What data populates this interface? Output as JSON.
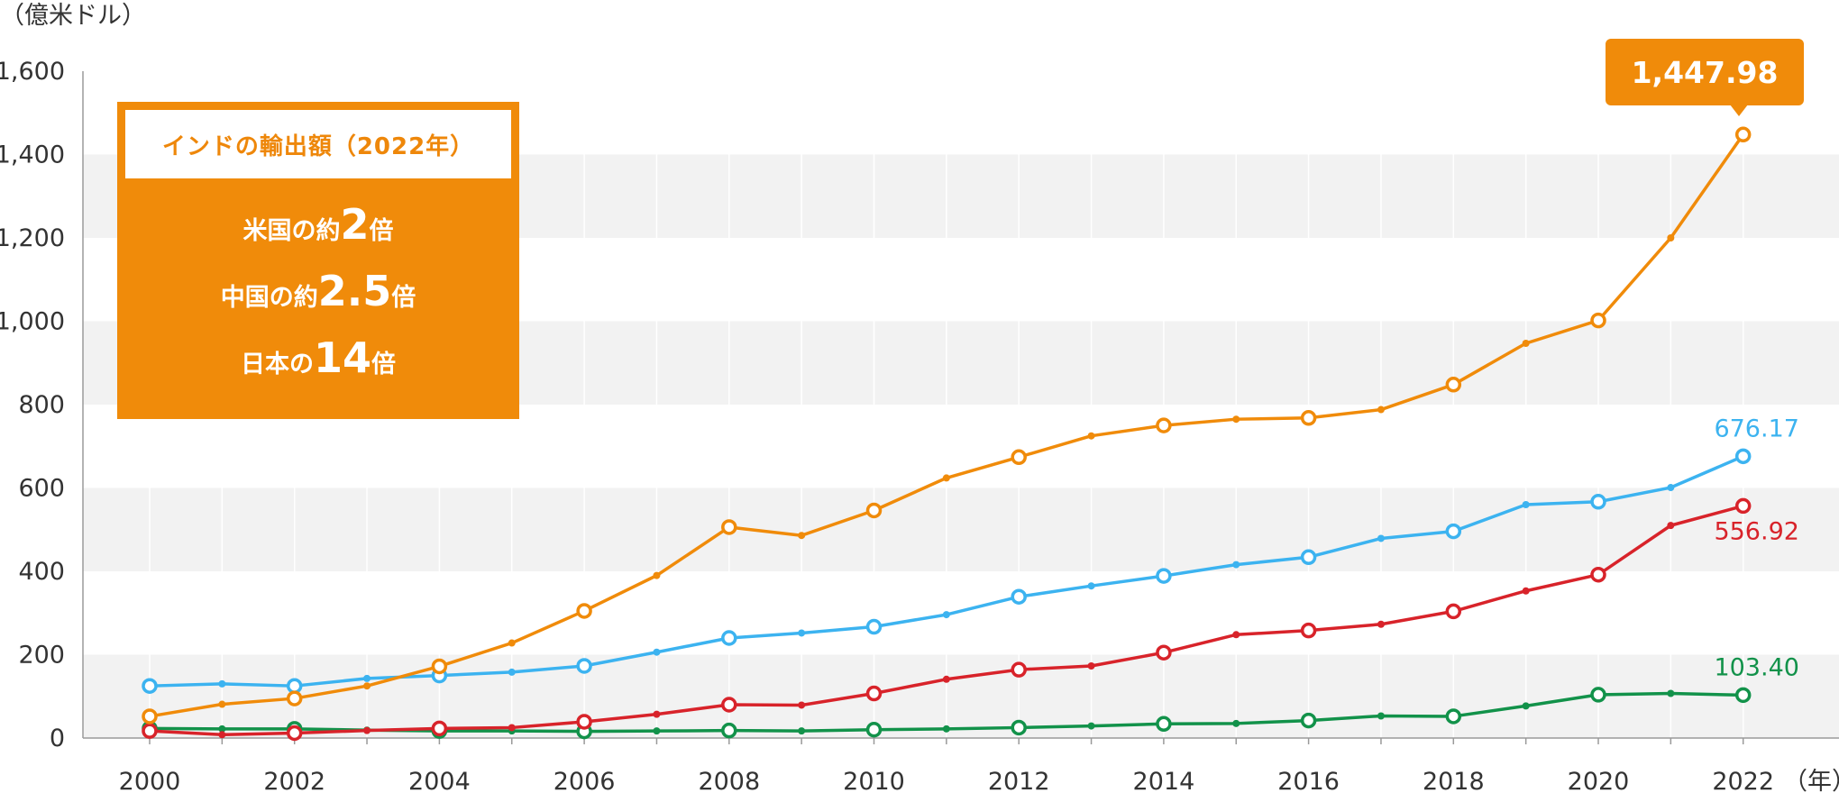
{
  "chart_data": {
    "type": "line",
    "yunit": "（億米ドル）",
    "xunit": "（年）",
    "ylim": [
      0,
      1600
    ],
    "yticks": [
      0,
      200,
      400,
      600,
      800,
      1000,
      1200,
      1400,
      1600
    ],
    "ytick_labels": [
      "0",
      "200",
      "400",
      "600",
      "800",
      "1,000",
      "1,200",
      "1,400",
      "1,600"
    ],
    "x": [
      2000,
      2001,
      2002,
      2003,
      2004,
      2005,
      2006,
      2007,
      2008,
      2009,
      2010,
      2011,
      2012,
      2013,
      2014,
      2015,
      2016,
      2017,
      2018,
      2019,
      2020,
      2021,
      2022
    ],
    "xtick_labels": [
      "2000",
      "2002",
      "2004",
      "2006",
      "2008",
      "2010",
      "2012",
      "2014",
      "2016",
      "2018",
      "2020",
      "2022"
    ],
    "grid": "alternating horizontal bands with vertical gridlines",
    "series": [
      {
        "color": "#F08B0A",
        "end_label": "1,447.98",
        "values": [
          52,
          81,
          95,
          125,
          172,
          228,
          305,
          390,
          506,
          486,
          546,
          624,
          674,
          725,
          750,
          765,
          768,
          788,
          848,
          947,
          1002,
          1200,
          1448
        ]
      },
      {
        "color": "#3CB3F0",
        "end_label": "676.17",
        "values": [
          125,
          130,
          125,
          143,
          150,
          158,
          173,
          206,
          240,
          252,
          267,
          296,
          339,
          365,
          389,
          416,
          434,
          479,
          496,
          560,
          567,
          601,
          676
        ]
      },
      {
        "color": "#D8232A",
        "end_label": "556.92",
        "values": [
          17,
          8,
          12,
          18,
          23,
          25,
          39,
          57,
          80,
          79,
          107,
          141,
          164,
          173,
          205,
          248,
          258,
          273,
          304,
          353,
          392,
          510,
          557
        ]
      },
      {
        "color": "#12924A",
        "end_label": "103.40",
        "values": [
          23,
          22,
          22,
          19,
          17,
          17,
          16,
          17,
          18,
          17,
          20,
          22,
          25,
          29,
          34,
          35,
          42,
          53,
          52,
          77,
          104,
          107,
          103
        ]
      }
    ]
  },
  "info_box": {
    "title": "インドの輸出額（2022年）",
    "lines": [
      {
        "pre": "米国の約",
        "num": "2",
        "post": "倍"
      },
      {
        "pre": "中国の約",
        "num": "2.5",
        "post": "倍"
      },
      {
        "pre": "日本の",
        "num": "14",
        "post": "倍"
      }
    ]
  },
  "callout": {
    "label": "1,447.98"
  }
}
